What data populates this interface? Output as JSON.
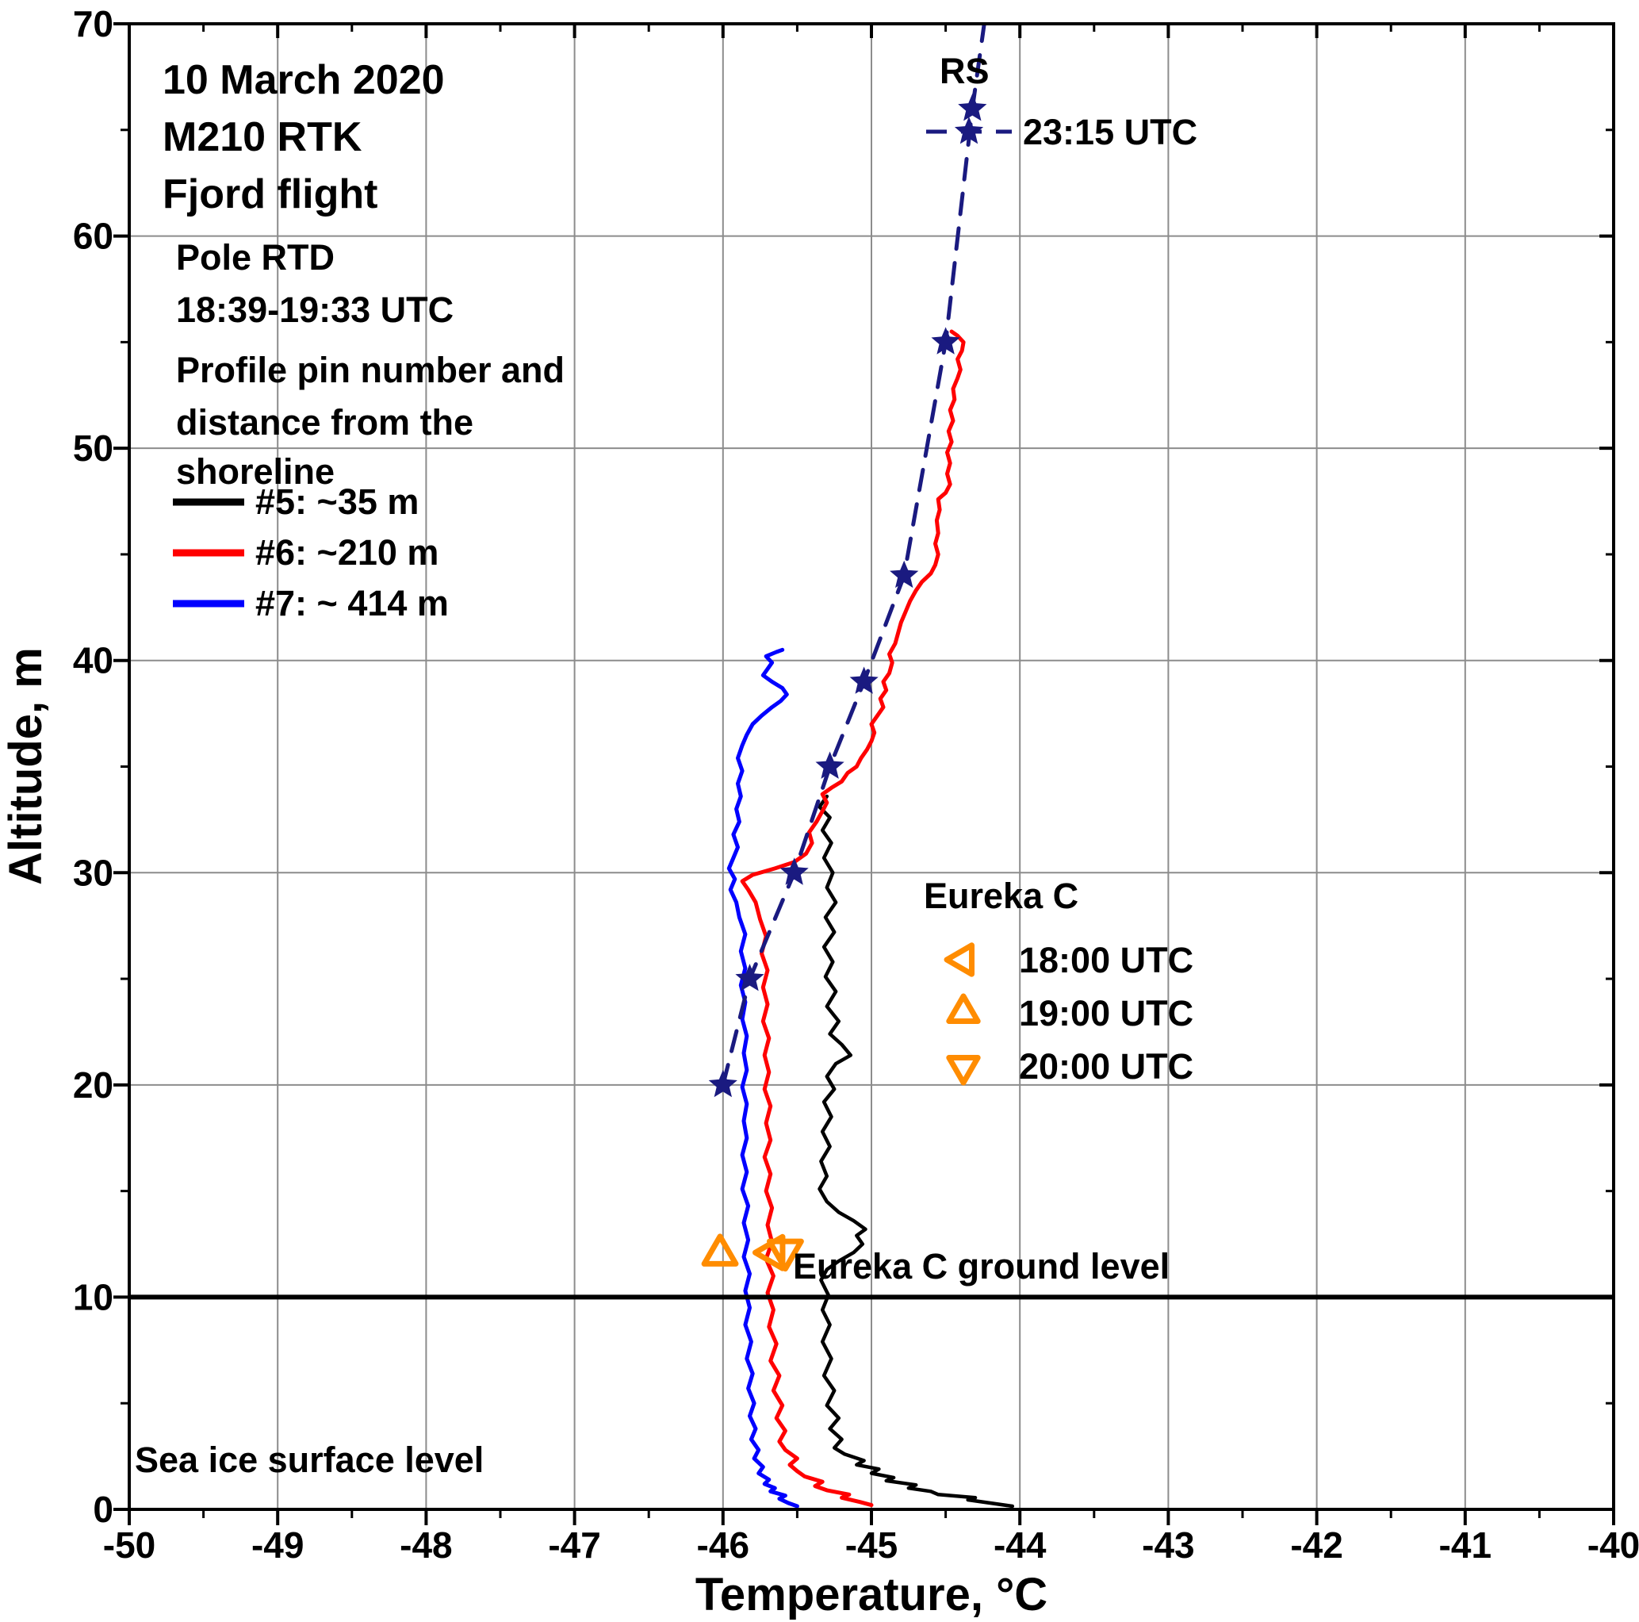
{
  "annotations": {
    "title1": "10 March 2020",
    "title2": "M210 RTK",
    "title3": "Fjord flight",
    "pole1": "Pole RTD",
    "pole2": "18:39-19:33 UTC",
    "profile_note1": "Profile pin number and",
    "profile_note2": "distance from the",
    "profile_note3": "shoreline",
    "ground_label": "Eureka C ground level",
    "sea_ice_label": "Sea ice surface level"
  },
  "rs_legend": {
    "title": "RS"
  },
  "eureka_legend": {
    "title": "Eureka C",
    "items": [
      {
        "marker": "triangle-left",
        "label": "18:00 UTC"
      },
      {
        "marker": "triangle-up",
        "label": "19:00 UTC"
      },
      {
        "marker": "triangle-down",
        "label": "20:00 UTC"
      }
    ]
  },
  "chart_data": {
    "type": "line",
    "xlabel": "Temperature, °C",
    "ylabel": "Altitude, m",
    "xlim": [
      -50,
      -40
    ],
    "ylim": [
      0,
      70
    ],
    "xticks": [
      -50,
      -49,
      -48,
      -47,
      -46,
      -45,
      -44,
      -43,
      -42,
      -41,
      -40
    ],
    "yticks": [
      0,
      10,
      20,
      30,
      40,
      50,
      60,
      70
    ],
    "grid": true,
    "ground_level_m": 10,
    "colors": {
      "grid": "#8c8c8c",
      "rs": "#1a1a80",
      "eureka": "#ff8c00",
      "frame": "#000000"
    },
    "series": [
      {
        "id": "profile-5",
        "name": "#5: ~35 m",
        "color": "#000000",
        "width": 4.5,
        "points": [
          [
            -44.05,
            0.15
          ],
          [
            -44.2,
            0.3
          ],
          [
            -44.35,
            0.45
          ],
          [
            -44.3,
            0.55
          ],
          [
            -44.55,
            0.7
          ],
          [
            -44.6,
            0.85
          ],
          [
            -44.75,
            1.0
          ],
          [
            -44.7,
            1.15
          ],
          [
            -44.9,
            1.35
          ],
          [
            -44.85,
            1.5
          ],
          [
            -45.0,
            1.7
          ],
          [
            -44.95,
            1.9
          ],
          [
            -45.1,
            2.1
          ],
          [
            -45.05,
            2.3
          ],
          [
            -45.18,
            2.6
          ],
          [
            -45.25,
            2.9
          ],
          [
            -45.2,
            3.3
          ],
          [
            -45.28,
            3.8
          ],
          [
            -45.22,
            4.3
          ],
          [
            -45.3,
            4.9
          ],
          [
            -45.25,
            5.6
          ],
          [
            -45.32,
            6.3
          ],
          [
            -45.27,
            7.1
          ],
          [
            -45.33,
            7.9
          ],
          [
            -45.28,
            8.7
          ],
          [
            -45.33,
            9.4
          ],
          [
            -45.29,
            10.1
          ],
          [
            -45.34,
            10.8
          ],
          [
            -45.3,
            11.3
          ],
          [
            -45.22,
            11.7
          ],
          [
            -45.12,
            12.1
          ],
          [
            -45.06,
            12.5
          ],
          [
            -45.1,
            12.9
          ],
          [
            -45.04,
            13.2
          ],
          [
            -45.12,
            13.6
          ],
          [
            -45.22,
            14.0
          ],
          [
            -45.3,
            14.5
          ],
          [
            -45.35,
            15.1
          ],
          [
            -45.3,
            15.7
          ],
          [
            -45.34,
            16.4
          ],
          [
            -45.28,
            17.1
          ],
          [
            -45.33,
            17.8
          ],
          [
            -45.27,
            18.5
          ],
          [
            -45.32,
            19.2
          ],
          [
            -45.25,
            19.8
          ],
          [
            -45.3,
            20.4
          ],
          [
            -45.24,
            21.0
          ],
          [
            -45.14,
            21.4
          ],
          [
            -45.2,
            21.9
          ],
          [
            -45.28,
            22.4
          ],
          [
            -45.22,
            23.0
          ],
          [
            -45.3,
            23.7
          ],
          [
            -45.24,
            24.4
          ],
          [
            -45.31,
            25.1
          ],
          [
            -45.26,
            25.8
          ],
          [
            -45.32,
            26.5
          ],
          [
            -45.25,
            27.2
          ],
          [
            -45.31,
            27.9
          ],
          [
            -45.24,
            28.6
          ],
          [
            -45.3,
            29.3
          ],
          [
            -45.26,
            30.0
          ],
          [
            -45.32,
            30.7
          ],
          [
            -45.27,
            31.4
          ],
          [
            -45.33,
            32.0
          ],
          [
            -45.28,
            32.6
          ],
          [
            -45.35,
            33.1
          ],
          [
            -45.3,
            33.6
          ]
        ]
      },
      {
        "id": "profile-6",
        "name": "#6: ~210 m",
        "color": "#ff0000",
        "width": 5,
        "points": [
          [
            -45.0,
            0.2
          ],
          [
            -45.08,
            0.35
          ],
          [
            -45.2,
            0.55
          ],
          [
            -45.15,
            0.7
          ],
          [
            -45.3,
            0.9
          ],
          [
            -45.38,
            1.1
          ],
          [
            -45.33,
            1.3
          ],
          [
            -45.45,
            1.55
          ],
          [
            -45.5,
            1.8
          ],
          [
            -45.55,
            2.1
          ],
          [
            -45.5,
            2.4
          ],
          [
            -45.58,
            2.8
          ],
          [
            -45.62,
            3.2
          ],
          [
            -45.58,
            3.7
          ],
          [
            -45.64,
            4.3
          ],
          [
            -45.6,
            4.9
          ],
          [
            -45.66,
            5.6
          ],
          [
            -45.62,
            6.3
          ],
          [
            -45.68,
            7.0
          ],
          [
            -45.64,
            7.8
          ],
          [
            -45.69,
            8.6
          ],
          [
            -45.66,
            9.4
          ],
          [
            -45.7,
            10.2
          ],
          [
            -45.66,
            11.0
          ],
          [
            -45.71,
            11.8
          ],
          [
            -45.67,
            12.6
          ],
          [
            -45.7,
            13.4
          ],
          [
            -45.67,
            14.2
          ],
          [
            -45.71,
            15.0
          ],
          [
            -45.68,
            15.8
          ],
          [
            -45.72,
            16.6
          ],
          [
            -45.68,
            17.4
          ],
          [
            -45.71,
            18.2
          ],
          [
            -45.68,
            19.0
          ],
          [
            -45.72,
            19.8
          ],
          [
            -45.69,
            20.6
          ],
          [
            -45.72,
            21.4
          ],
          [
            -45.69,
            22.2
          ],
          [
            -45.73,
            23.0
          ],
          [
            -45.7,
            23.8
          ],
          [
            -45.73,
            24.6
          ],
          [
            -45.7,
            25.4
          ],
          [
            -45.74,
            26.2
          ],
          [
            -45.71,
            27.0
          ],
          [
            -45.75,
            27.8
          ],
          [
            -45.78,
            28.6
          ],
          [
            -45.83,
            29.2
          ],
          [
            -45.87,
            29.6
          ],
          [
            -45.8,
            29.9
          ],
          [
            -45.65,
            30.2
          ],
          [
            -45.52,
            30.5
          ],
          [
            -45.44,
            30.9
          ],
          [
            -45.4,
            31.4
          ],
          [
            -45.42,
            31.9
          ],
          [
            -45.37,
            32.4
          ],
          [
            -45.33,
            32.9
          ],
          [
            -45.3,
            33.3
          ],
          [
            -45.33,
            33.7
          ],
          [
            -45.27,
            34.0
          ],
          [
            -45.2,
            34.3
          ],
          [
            -45.16,
            34.7
          ],
          [
            -45.1,
            35.0
          ],
          [
            -45.07,
            35.4
          ],
          [
            -45.03,
            35.8
          ],
          [
            -45.0,
            36.2
          ],
          [
            -44.98,
            36.6
          ],
          [
            -45.0,
            37.0
          ],
          [
            -44.96,
            37.4
          ],
          [
            -44.92,
            37.8
          ],
          [
            -44.94,
            38.2
          ],
          [
            -44.9,
            38.6
          ],
          [
            -44.92,
            39.0
          ],
          [
            -44.88,
            39.4
          ],
          [
            -44.86,
            39.9
          ],
          [
            -44.88,
            40.3
          ],
          [
            -44.84,
            40.8
          ],
          [
            -44.82,
            41.3
          ],
          [
            -44.8,
            41.8
          ],
          [
            -44.77,
            42.3
          ],
          [
            -44.74,
            42.8
          ],
          [
            -44.7,
            43.3
          ],
          [
            -44.66,
            43.7
          ],
          [
            -44.6,
            44.1
          ],
          [
            -44.57,
            44.5
          ],
          [
            -44.55,
            45.0
          ],
          [
            -44.57,
            45.5
          ],
          [
            -44.55,
            46.0
          ],
          [
            -44.56,
            46.6
          ],
          [
            -44.54,
            47.1
          ],
          [
            -44.55,
            47.6
          ],
          [
            -44.5,
            47.9
          ],
          [
            -44.47,
            48.3
          ],
          [
            -44.49,
            48.8
          ],
          [
            -44.47,
            49.3
          ],
          [
            -44.49,
            49.8
          ],
          [
            -44.46,
            50.3
          ],
          [
            -44.48,
            50.8
          ],
          [
            -44.45,
            51.3
          ],
          [
            -44.47,
            51.8
          ],
          [
            -44.44,
            52.3
          ],
          [
            -44.45,
            52.8
          ],
          [
            -44.42,
            53.3
          ],
          [
            -44.4,
            53.7
          ],
          [
            -44.42,
            54.2
          ],
          [
            -44.39,
            54.6
          ],
          [
            -44.38,
            55.0
          ],
          [
            -44.42,
            55.3
          ],
          [
            -44.46,
            55.5
          ]
        ]
      },
      {
        "id": "profile-7",
        "name": "#7: ~ 414 m",
        "color": "#0000ff",
        "width": 5,
        "points": [
          [
            -45.5,
            0.15
          ],
          [
            -45.56,
            0.3
          ],
          [
            -45.62,
            0.5
          ],
          [
            -45.58,
            0.65
          ],
          [
            -45.68,
            0.85
          ],
          [
            -45.65,
            1.0
          ],
          [
            -45.72,
            1.2
          ],
          [
            -45.69,
            1.4
          ],
          [
            -45.76,
            1.7
          ],
          [
            -45.73,
            2.0
          ],
          [
            -45.79,
            2.4
          ],
          [
            -45.76,
            2.8
          ],
          [
            -45.81,
            3.3
          ],
          [
            -45.78,
            3.8
          ],
          [
            -45.82,
            4.4
          ],
          [
            -45.79,
            5.0
          ],
          [
            -45.83,
            5.7
          ],
          [
            -45.8,
            6.4
          ],
          [
            -45.84,
            7.1
          ],
          [
            -45.81,
            7.9
          ],
          [
            -45.85,
            8.7
          ],
          [
            -45.82,
            9.5
          ],
          [
            -45.85,
            10.3
          ],
          [
            -45.82,
            11.1
          ],
          [
            -45.86,
            11.9
          ],
          [
            -45.83,
            12.7
          ],
          [
            -45.86,
            13.5
          ],
          [
            -45.83,
            14.3
          ],
          [
            -45.87,
            15.1
          ],
          [
            -45.84,
            15.9
          ],
          [
            -45.87,
            16.7
          ],
          [
            -45.84,
            17.5
          ],
          [
            -45.86,
            18.3
          ],
          [
            -45.84,
            19.1
          ],
          [
            -45.87,
            19.9
          ],
          [
            -45.84,
            20.7
          ],
          [
            -45.86,
            21.5
          ],
          [
            -45.84,
            22.3
          ],
          [
            -45.87,
            23.1
          ],
          [
            -45.85,
            23.9
          ],
          [
            -45.88,
            24.7
          ],
          [
            -45.85,
            25.5
          ],
          [
            -45.88,
            26.3
          ],
          [
            -45.85,
            27.1
          ],
          [
            -45.89,
            27.9
          ],
          [
            -45.91,
            28.6
          ],
          [
            -45.95,
            29.2
          ],
          [
            -45.92,
            29.7
          ],
          [
            -45.96,
            30.2
          ],
          [
            -45.93,
            30.7
          ],
          [
            -45.9,
            31.2
          ],
          [
            -45.93,
            31.8
          ],
          [
            -45.89,
            32.4
          ],
          [
            -45.91,
            33.0
          ],
          [
            -45.88,
            33.6
          ],
          [
            -45.9,
            34.2
          ],
          [
            -45.87,
            34.8
          ],
          [
            -45.9,
            35.4
          ],
          [
            -45.87,
            36.0
          ],
          [
            -45.84,
            36.5
          ],
          [
            -45.8,
            37.0
          ],
          [
            -45.74,
            37.4
          ],
          [
            -45.67,
            37.8
          ],
          [
            -45.61,
            38.1
          ],
          [
            -45.57,
            38.4
          ],
          [
            -45.6,
            38.7
          ],
          [
            -45.67,
            39.0
          ],
          [
            -45.73,
            39.3
          ],
          [
            -45.7,
            39.6
          ],
          [
            -45.67,
            39.9
          ],
          [
            -45.71,
            40.2
          ],
          [
            -45.64,
            40.4
          ],
          [
            -45.6,
            40.5
          ]
        ]
      },
      {
        "id": "rs-2315",
        "name": "23:15 UTC",
        "color": "#1a1a80",
        "width": 5,
        "dash": true,
        "marker": "star",
        "points": [
          [
            -46.0,
            20
          ],
          [
            -45.82,
            25
          ],
          [
            -45.52,
            30
          ],
          [
            -45.28,
            35
          ],
          [
            -45.05,
            39
          ],
          [
            -44.78,
            44
          ],
          [
            -44.5,
            55
          ],
          [
            -44.32,
            66
          ],
          [
            -44.22,
            71
          ]
        ]
      }
    ],
    "eureka_points": [
      {
        "marker": "triangle-left",
        "t": -45.66,
        "alt": 12.1
      },
      {
        "marker": "triangle-up",
        "t": -46.02,
        "alt": 12.0
      },
      {
        "marker": "triangle-down",
        "t": -45.58,
        "alt": 12.2
      }
    ]
  }
}
